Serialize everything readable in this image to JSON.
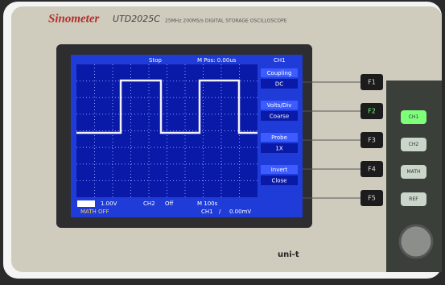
{
  "header": {
    "brand": "Sinometer",
    "model": "UTD2025C",
    "spec": "25MHz 200MS/s DIGITAL STORAGE OSCILLOSCOPE"
  },
  "screen": {
    "status": "Stop",
    "position": "M Pos: 0.00us",
    "channel": "CH1",
    "menu": [
      {
        "label": "Coupling",
        "value": "DC"
      },
      {
        "label": "Volts/Div",
        "value": "Coarse"
      },
      {
        "label": "Probe",
        "value": "1X"
      },
      {
        "label": "Invert",
        "value": "Close"
      }
    ],
    "footer": {
      "ch1_scale": "1.00V",
      "ch2": "CH2",
      "ch2_state": "Off",
      "timebase": "M 100s",
      "math": "MATH OFF",
      "trigger_source": "CH1",
      "trigger_slope": "/",
      "trigger_level": "0.00mV"
    }
  },
  "buttons": {
    "function": [
      "F1",
      "F2",
      "F3",
      "F4",
      "F5"
    ],
    "channels": [
      "CH1",
      "CH2",
      "MATH",
      "REF"
    ]
  }
}
